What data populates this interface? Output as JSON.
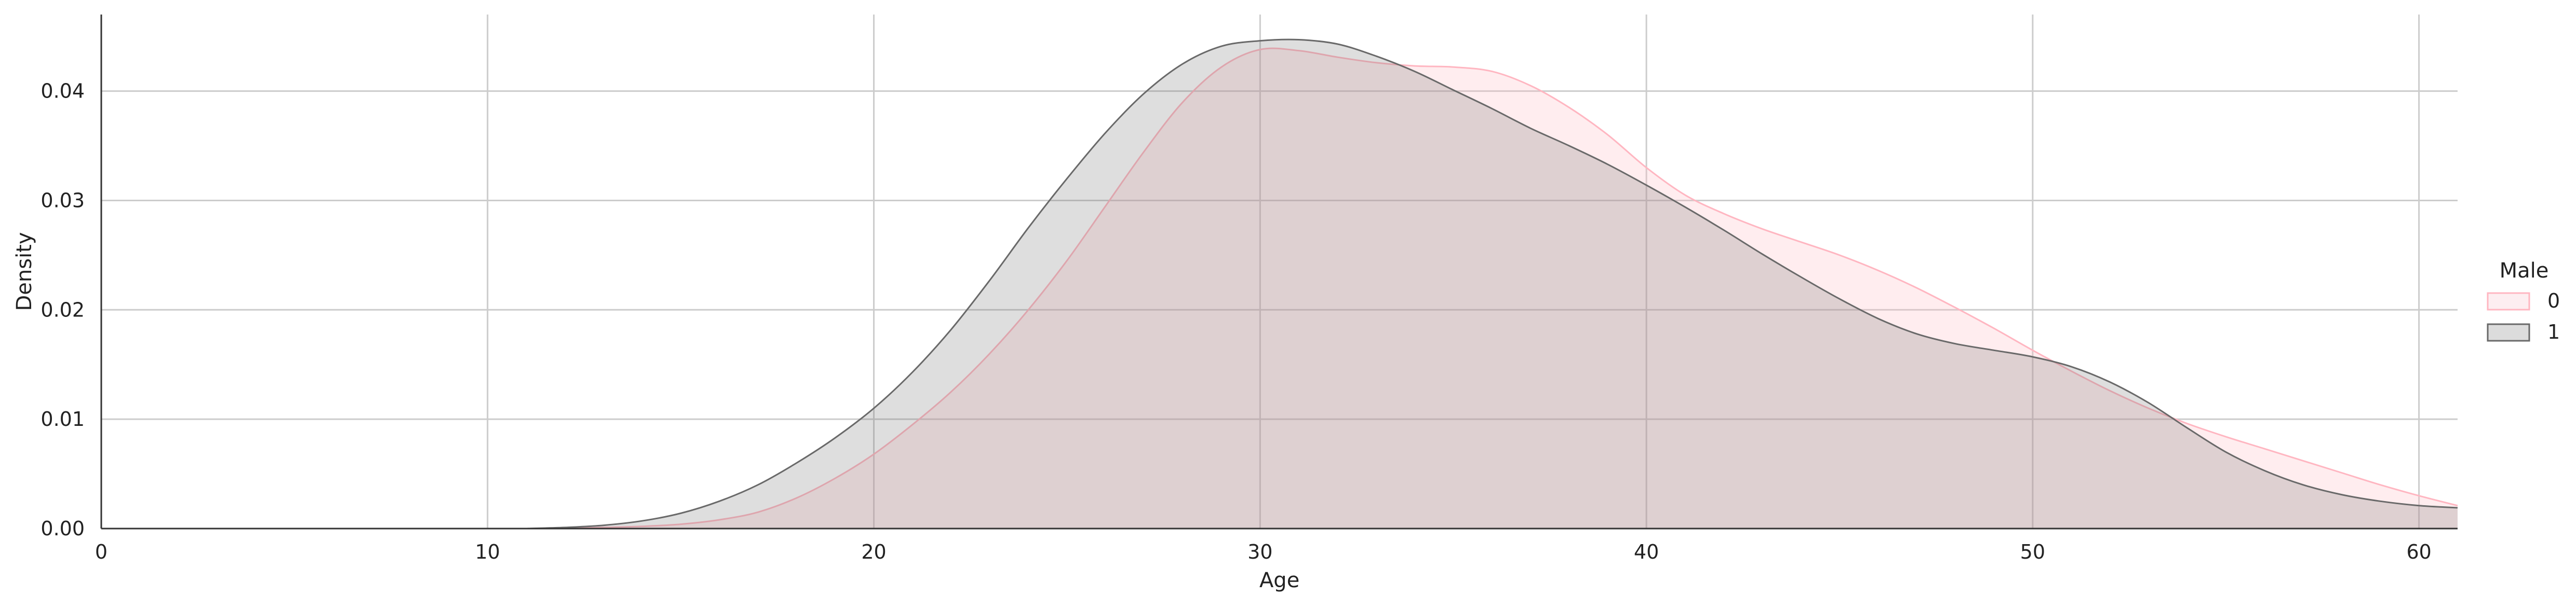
{
  "chart_data": {
    "type": "area",
    "xlabel": "Age",
    "ylabel": "Density",
    "xlim": [
      0,
      61
    ],
    "ylim": [
      0,
      0.047
    ],
    "grid": true,
    "x_ticks": [
      0,
      10,
      20,
      30,
      40,
      50,
      60
    ],
    "x_tick_labels": [
      "0",
      "10",
      "20",
      "30",
      "40",
      "50",
      "60"
    ],
    "y_ticks": [
      0,
      0.01,
      0.02,
      0.03,
      0.04
    ],
    "y_tick_labels": [
      "0.00",
      "0.01",
      "0.02",
      "0.03",
      "0.04"
    ],
    "legend": {
      "title": "Male",
      "position": "right"
    },
    "series": [
      {
        "name": "0",
        "color": "#FFB6C1",
        "x": [
          12,
          13,
          14,
          15,
          16,
          17,
          18,
          19,
          20,
          21,
          22,
          23,
          24,
          25,
          26,
          27,
          28,
          29,
          30,
          31,
          32,
          33,
          34,
          35,
          36,
          37,
          38,
          39,
          40,
          41,
          42,
          43,
          44,
          45,
          46,
          47,
          48,
          49,
          50,
          51,
          52,
          53,
          54,
          55,
          56,
          57,
          58,
          59,
          60,
          61
        ],
        "values": [
          0.0,
          0.0001,
          0.0002,
          0.0004,
          0.0008,
          0.0015,
          0.0028,
          0.0046,
          0.0068,
          0.0095,
          0.0125,
          0.016,
          0.02,
          0.0245,
          0.0295,
          0.0345,
          0.039,
          0.0422,
          0.0438,
          0.0437,
          0.0431,
          0.0426,
          0.0423,
          0.0422,
          0.0418,
          0.0405,
          0.0385,
          0.036,
          0.033,
          0.0305,
          0.0288,
          0.0274,
          0.0262,
          0.025,
          0.0236,
          0.022,
          0.0202,
          0.0183,
          0.0163,
          0.0144,
          0.0126,
          0.011,
          0.0096,
          0.0084,
          0.0073,
          0.0062,
          0.0051,
          0.004,
          0.003,
          0.0021
        ]
      },
      {
        "name": "1",
        "color": "#696969",
        "x": [
          11,
          12,
          13,
          14,
          15,
          16,
          17,
          18,
          19,
          20,
          21,
          22,
          23,
          24,
          25,
          26,
          27,
          28,
          29,
          30,
          31,
          32,
          33,
          34,
          35,
          36,
          37,
          38,
          39,
          40,
          41,
          42,
          43,
          44,
          45,
          46,
          47,
          48,
          49,
          50,
          51,
          52,
          53,
          54,
          55,
          56,
          57,
          58,
          59,
          60,
          61
        ],
        "values": [
          0.0,
          0.0001,
          0.0003,
          0.0007,
          0.0014,
          0.0025,
          0.004,
          0.006,
          0.0083,
          0.011,
          0.0143,
          0.0182,
          0.0227,
          0.0275,
          0.032,
          0.0362,
          0.0398,
          0.0425,
          0.0441,
          0.0446,
          0.0447,
          0.0443,
          0.0432,
          0.0418,
          0.0401,
          0.0384,
          0.0366,
          0.035,
          0.0333,
          0.0314,
          0.0294,
          0.0273,
          0.0251,
          0.023,
          0.021,
          0.0192,
          0.0178,
          0.0169,
          0.0163,
          0.0157,
          0.0148,
          0.0134,
          0.0115,
          0.0092,
          0.007,
          0.0053,
          0.004,
          0.0031,
          0.0025,
          0.0021,
          0.0019
        ]
      }
    ]
  }
}
